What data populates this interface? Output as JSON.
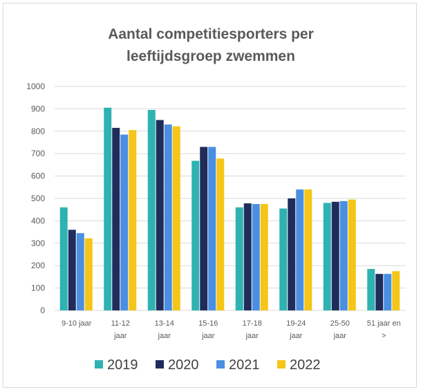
{
  "chart_data": {
    "type": "bar",
    "title_lines": [
      "Aantal competitiesporters per",
      "leeftijdsgroep zwemmen"
    ],
    "categories": [
      [
        "9-10 jaar"
      ],
      [
        "11-12",
        "jaar"
      ],
      [
        "13-14",
        "jaar"
      ],
      [
        "15-16",
        "jaar"
      ],
      [
        "17-18",
        "jaar"
      ],
      [
        "19-24",
        "jaar"
      ],
      [
        "25-50",
        "jaar"
      ],
      [
        "51 jaar en",
        ">"
      ]
    ],
    "series": [
      {
        "name": "2019",
        "color": "#2EB2B2",
        "values": [
          460,
          905,
          895,
          668,
          460,
          455,
          480,
          185
        ]
      },
      {
        "name": "2020",
        "color": "#1F2D5C",
        "values": [
          360,
          815,
          850,
          730,
          478,
          500,
          485,
          163
        ]
      },
      {
        "name": "2021",
        "color": "#4A8FE0",
        "values": [
          345,
          785,
          830,
          730,
          475,
          540,
          488,
          163
        ]
      },
      {
        "name": "2022",
        "color": "#F5C518",
        "values": [
          322,
          805,
          822,
          678,
          475,
          540,
          495,
          175
        ]
      }
    ],
    "ylim": [
      0,
      1000
    ],
    "yticks": [
      0,
      100,
      200,
      300,
      400,
      500,
      600,
      700,
      800,
      900,
      1000
    ],
    "grid": true,
    "legend_position": "bottom"
  }
}
